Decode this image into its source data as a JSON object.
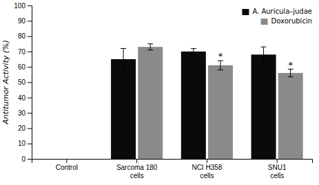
{
  "chart_data": {
    "type": "bar",
    "categories": [
      "Control",
      "Sarcoma 180\ncells",
      "NCI H358\ncells",
      "SNU1\ncells"
    ],
    "series": [
      {
        "name": "A. Auricula–judae",
        "color": "#0a0a0a",
        "values": [
          null,
          65,
          70,
          68
        ],
        "errors": [
          null,
          7,
          2,
          5
        ]
      },
      {
        "name": "Doxorubicin",
        "color": "#8a8a8a",
        "values": [
          null,
          73,
          61,
          56
        ],
        "errors": [
          null,
          2,
          3,
          2.5
        ],
        "annotations": [
          null,
          null,
          "*",
          "*"
        ]
      }
    ],
    "y_label": "Antitumor Activity (%)",
    "ylim": [
      0,
      100
    ],
    "yticks": [
      0,
      10,
      20,
      30,
      40,
      50,
      60,
      70,
      80,
      90,
      100
    ],
    "grid": false,
    "legend": "upper right"
  }
}
